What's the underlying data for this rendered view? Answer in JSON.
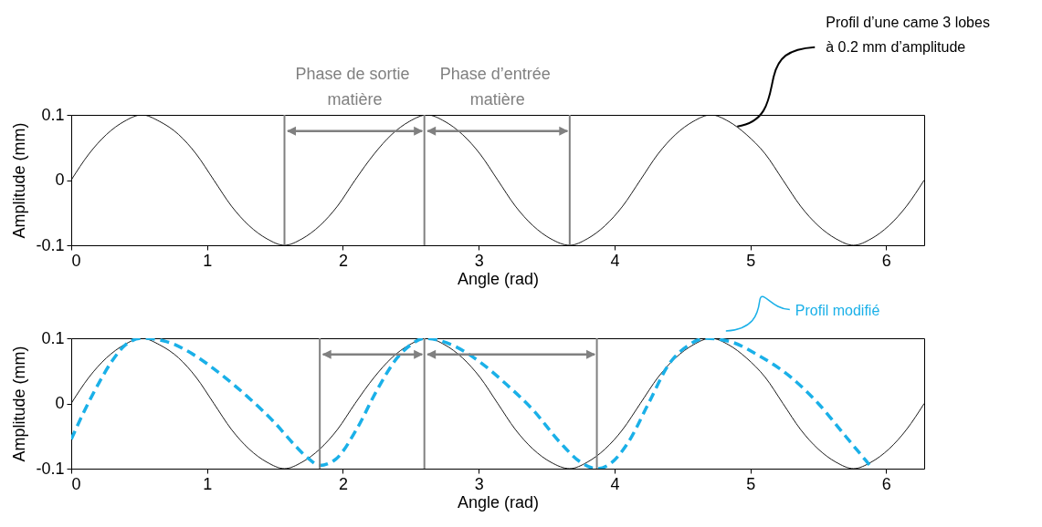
{
  "chart_data": [
    {
      "type": "line",
      "xlabel": "Angle (rad)",
      "ylabel": "Amplitude (mm)",
      "xlim": [
        0,
        6.28
      ],
      "xticks": [
        0,
        1,
        2,
        3,
        4,
        5,
        6
      ],
      "ylim": [
        -0.1,
        0.1
      ],
      "yticks": [
        -0.1,
        0,
        0.1
      ],
      "x": [
        0,
        0.13,
        0.26,
        0.39,
        0.52,
        0.65,
        0.79,
        0.92,
        1.05,
        1.18,
        1.31,
        1.44,
        1.57,
        1.7,
        1.83,
        1.96,
        2.09,
        2.23,
        2.36,
        2.49,
        2.62,
        2.75,
        2.88,
        3.01,
        3.14,
        3.27,
        3.4,
        3.53,
        3.67,
        3.8,
        3.93,
        4.06,
        4.19,
        4.32,
        4.45,
        4.58,
        4.71,
        4.84,
        4.97,
        5.11,
        5.24,
        5.37,
        5.5,
        5.63,
        5.76,
        5.89,
        6.02,
        6.15,
        6.28
      ],
      "series": [
        {
          "color": "#000000",
          "values": [
            0,
            0.04,
            0.07,
            0.09,
            0.1,
            0.09,
            0.07,
            0.04,
            0,
            -0.04,
            -0.07,
            -0.09,
            -0.1,
            -0.09,
            -0.07,
            -0.04,
            0,
            0.04,
            0.07,
            0.09,
            0.1,
            0.09,
            0.07,
            0.04,
            0,
            -0.04,
            -0.07,
            -0.09,
            -0.1,
            -0.09,
            -0.07,
            -0.04,
            0,
            0.04,
            0.07,
            0.09,
            0.1,
            0.09,
            0.07,
            0.04,
            0,
            -0.04,
            -0.07,
            -0.09,
            -0.1,
            -0.09,
            -0.07,
            -0.04,
            0
          ]
        }
      ],
      "ref_lines": [
        {
          "axis": "x",
          "value": 1.57,
          "color": "#808080"
        },
        {
          "axis": "x",
          "value": 2.6,
          "color": "#808080"
        },
        {
          "axis": "x",
          "value": 3.67,
          "color": "#808080"
        }
      ],
      "annotations": [
        "Phase de sortie\nmatière",
        "Phase d’entrée\nmatière",
        {
          "text": "Profil d’une came 3 lobes\nà 0.2 mm d’amplitude",
          "x": 4.9,
          "y": 0.09
        }
      ]
    },
    {
      "type": "line",
      "xlabel": "Angle (rad)",
      "ylabel": "Amplitude (mm)",
      "xlim": [
        0,
        6.28
      ],
      "xticks": [
        0,
        1,
        2,
        3,
        4,
        5,
        6
      ],
      "ylim": [
        -0.1,
        0.1
      ],
      "yticks": [
        -0.1,
        0,
        0.1
      ],
      "x": [
        0,
        0.13,
        0.26,
        0.39,
        0.52,
        0.65,
        0.79,
        0.92,
        1.05,
        1.18,
        1.31,
        1.44,
        1.57,
        1.7,
        1.83,
        1.96,
        2.09,
        2.23,
        2.36,
        2.49,
        2.62,
        2.75,
        2.88,
        3.01,
        3.14,
        3.27,
        3.4,
        3.53,
        3.67,
        3.8,
        3.93,
        4.06,
        4.19,
        4.32,
        4.45,
        4.58,
        4.71,
        4.84,
        4.97,
        5.11,
        5.24,
        5.37,
        5.5,
        5.63,
        5.76,
        5.89,
        6.02,
        6.15,
        6.28
      ],
      "series": [
        {
          "color": "#000000",
          "values": [
            0,
            0.04,
            0.07,
            0.09,
            0.1,
            0.09,
            0.07,
            0.04,
            0,
            -0.04,
            -0.07,
            -0.09,
            -0.1,
            -0.09,
            -0.07,
            -0.04,
            0,
            0.04,
            0.07,
            0.09,
            0.1,
            0.09,
            0.07,
            0.04,
            0,
            -0.04,
            -0.07,
            -0.09,
            -0.1,
            -0.09,
            -0.07,
            -0.04,
            0,
            0.04,
            0.07,
            0.09,
            0.1,
            0.09,
            0.07,
            0.04,
            0,
            -0.04,
            -0.07,
            -0.09,
            -0.1,
            -0.09,
            -0.07,
            -0.04,
            0
          ]
        },
        {
          "name": "Profil modifié",
          "color": "#1ab0e8",
          "line_style": "dashed",
          "x": [
            0,
            0.1,
            0.2,
            0.3,
            0.4,
            0.52,
            0.7,
            0.9,
            1.1,
            1.3,
            1.5,
            1.65,
            1.75,
            1.83,
            1.95,
            2.1,
            2.25,
            2.4,
            2.5,
            2.6,
            2.8,
            3.0,
            3.2,
            3.4,
            3.6,
            3.75,
            3.87,
            3.95,
            4.1,
            4.25,
            4.4,
            4.55,
            4.67,
            4.85,
            5.05,
            5.3,
            5.5,
            5.7,
            5.9
          ],
          "values": [
            -0.055,
            -0.01,
            0.03,
            0.065,
            0.09,
            0.1,
            0.095,
            0.075,
            0.045,
            0.01,
            -0.03,
            -0.065,
            -0.085,
            -0.095,
            -0.085,
            -0.04,
            0.02,
            0.07,
            0.09,
            0.1,
            0.09,
            0.065,
            0.03,
            -0.01,
            -0.06,
            -0.09,
            -0.1,
            -0.095,
            -0.06,
            0,
            0.06,
            0.09,
            0.1,
            0.095,
            0.075,
            0.04,
            0,
            -0.05,
            -0.1
          ]
        }
      ],
      "ref_lines": [
        {
          "axis": "x",
          "value": 1.83,
          "color": "#808080"
        },
        {
          "axis": "x",
          "value": 2.6,
          "color": "#808080"
        },
        {
          "axis": "x",
          "value": 3.87,
          "color": "#808080"
        }
      ]
    }
  ]
}
